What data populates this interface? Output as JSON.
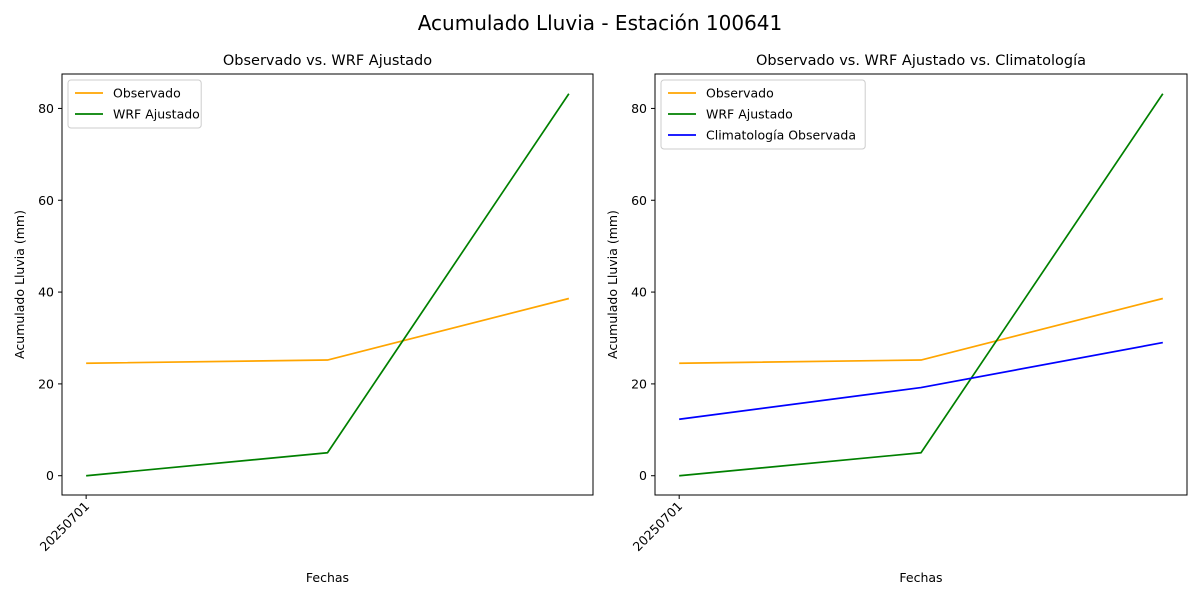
{
  "figure_title": "Acumulado Lluvia - Estación 100641",
  "chart_data": [
    {
      "type": "line",
      "title": "Observado vs. WRF Ajustado",
      "xlabel": "Fechas",
      "ylabel": "Acumulado Lluvia (mm)",
      "x": [
        0,
        1,
        2
      ],
      "xtick_labels": [
        "20250701"
      ],
      "yticks": [
        0,
        20,
        40,
        60,
        80
      ],
      "ylim": [
        -4.2,
        87.5
      ],
      "grid": false,
      "legend_position": "upper-left",
      "series": [
        {
          "name": "Observado",
          "color": "#ffa500",
          "values": [
            24.5,
            25.2,
            38.6
          ]
        },
        {
          "name": "WRF Ajustado",
          "color": "#008000",
          "values": [
            0.0,
            5.0,
            83.2
          ]
        }
      ]
    },
    {
      "type": "line",
      "title": "Observado vs. WRF Ajustado vs. Climatología",
      "xlabel": "Fechas",
      "ylabel": "Acumulado Lluvia (mm)",
      "x": [
        0,
        1,
        2
      ],
      "xtick_labels": [
        "20250701"
      ],
      "yticks": [
        0,
        20,
        40,
        60,
        80
      ],
      "ylim": [
        -4.2,
        87.5
      ],
      "grid": false,
      "legend_position": "upper-left",
      "series": [
        {
          "name": "Observado",
          "color": "#ffa500",
          "values": [
            24.5,
            25.2,
            38.6
          ]
        },
        {
          "name": "WRF Ajustado",
          "color": "#008000",
          "values": [
            0.0,
            5.0,
            83.2
          ]
        },
        {
          "name": "Climatología Observada",
          "color": "#0000ff",
          "values": [
            12.3,
            19.2,
            29.0
          ]
        }
      ]
    }
  ]
}
